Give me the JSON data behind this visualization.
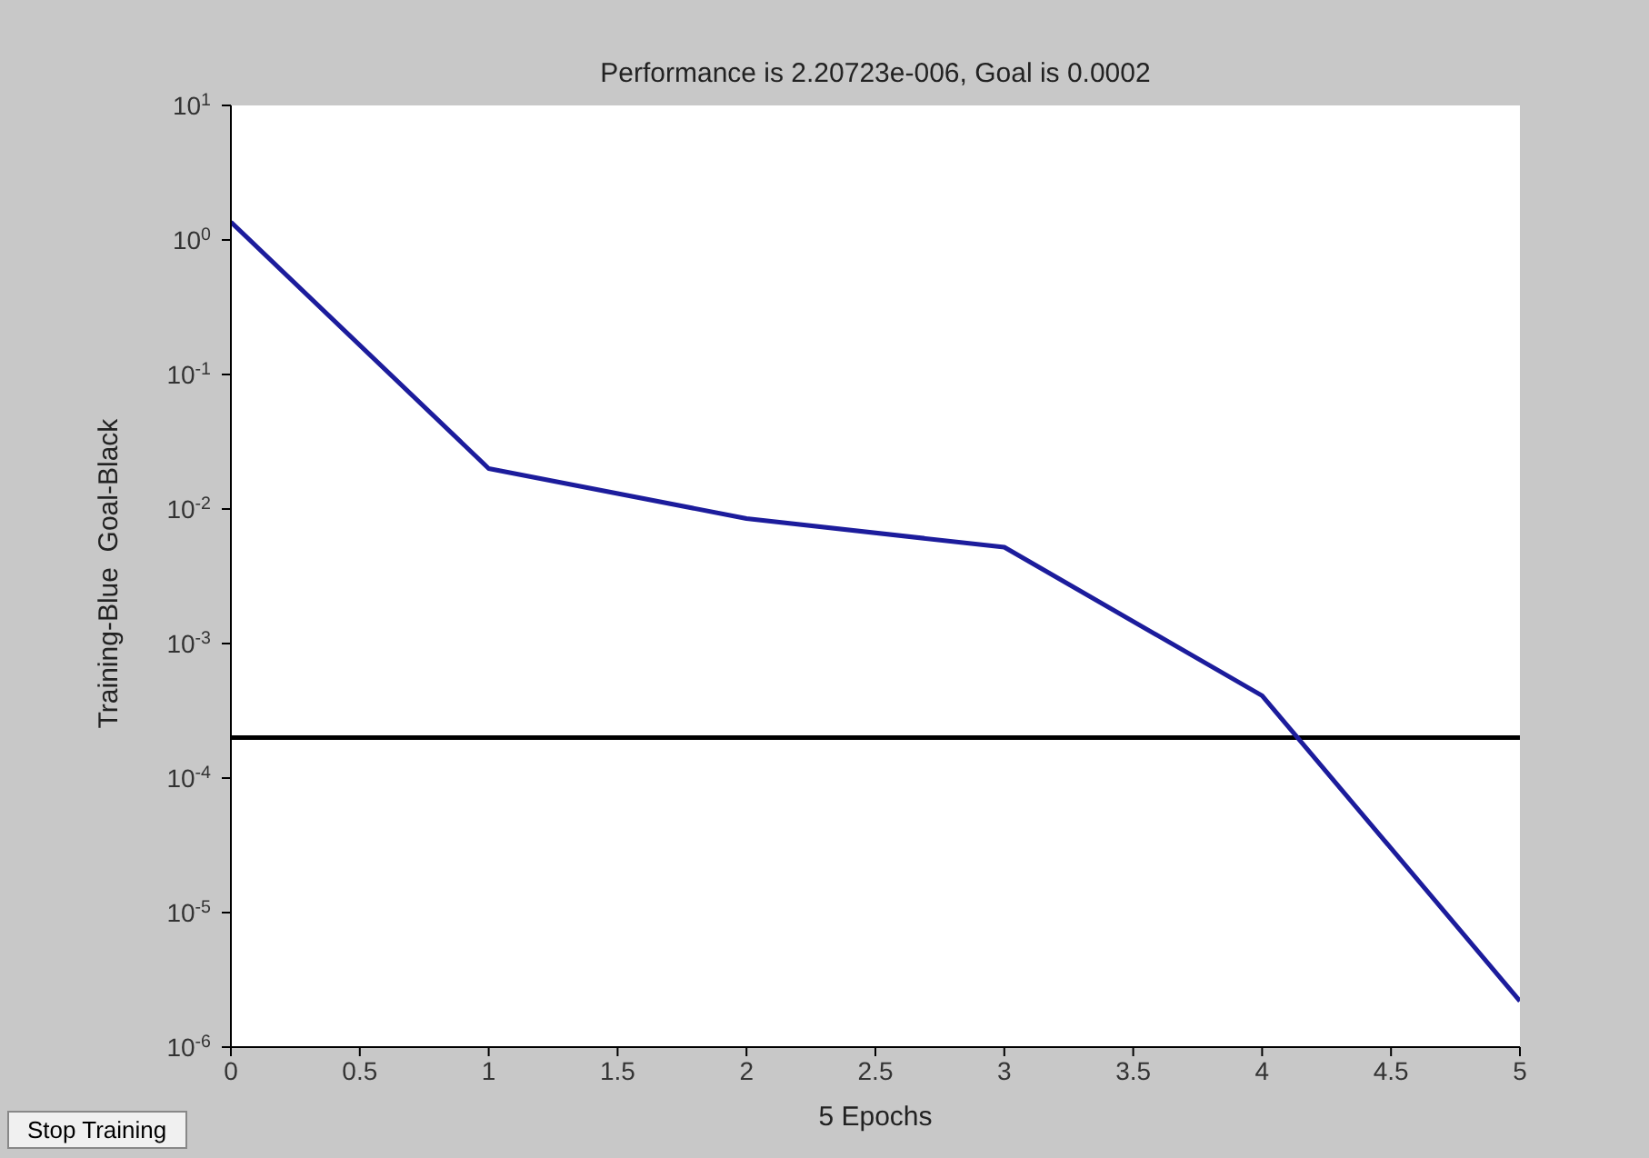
{
  "chart_data": {
    "type": "line",
    "title": "Performance is 2.20723e-006, Goal is 0.0002",
    "xlabel": "5 Epochs",
    "ylabel": "Training-Blue  Goal-Black",
    "x": [
      0,
      1,
      2,
      3,
      4,
      5
    ],
    "series": [
      {
        "color": "#1c1c9c",
        "values": [
          1.36,
          0.02,
          0.0085,
          0.0052,
          0.00041,
          2.2e-06
        ]
      }
    ],
    "log": "y",
    "xlim": [
      0,
      5
    ],
    "xticks": [
      0,
      0.5,
      1,
      1.5,
      2,
      2.5,
      3,
      3.5,
      4,
      4.5,
      5
    ],
    "ylim": [
      1e-06,
      10
    ],
    "yticks": [
      {
        "value": 1e-06,
        "label": "10$^{-6}$"
      },
      {
        "value": 1e-05,
        "label": "10$^{-5}$"
      },
      {
        "value": 0.0001,
        "label": "10$^{-4}$"
      },
      {
        "value": 0.001,
        "label": "10$^{-3}$"
      },
      {
        "value": 0.01,
        "label": "10$^{-2}$"
      },
      {
        "value": 0.1,
        "label": "10$^{-1}$"
      },
      {
        "value": 1,
        "label": "10$^{0}$"
      },
      {
        "value": 10,
        "label": "10$^{1}$"
      }
    ],
    "ref_lines": [
      {
        "axis": "y",
        "value": 0.0002,
        "color": "#000000"
      }
    ],
    "annotations": [
      "Stop Training"
    ],
    "grid": false,
    "legend": false,
    "marker": "none",
    "line_style": "solid"
  }
}
